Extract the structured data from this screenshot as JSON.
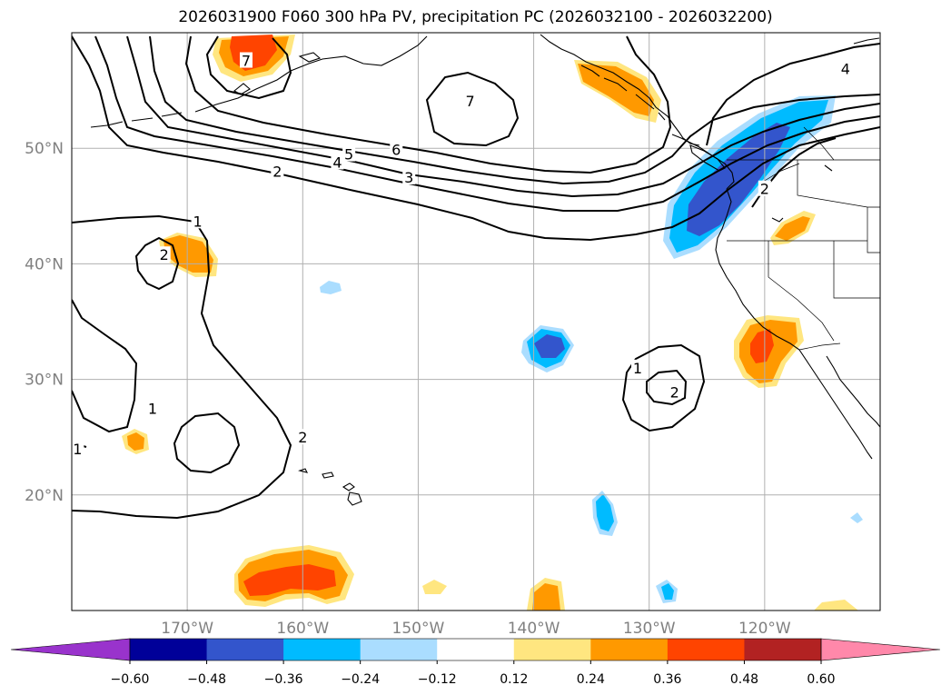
{
  "chart_data": {
    "type": "contour-map",
    "title": "2026031900 F060 300 hPa PV, precipitation PC (2026032100 - 2026032200)",
    "lat_range": [
      10,
      60
    ],
    "lon_range": [
      -180,
      -110
    ],
    "lat_ticks": [
      {
        "value": 50,
        "label": "50°N"
      },
      {
        "value": 40,
        "label": "40°N"
      },
      {
        "value": 30,
        "label": "30°N"
      },
      {
        "value": 20,
        "label": "20°N"
      }
    ],
    "lon_ticks": [
      {
        "value": -170,
        "label": "170°W"
      },
      {
        "value": -160,
        "label": "160°W"
      },
      {
        "value": -150,
        "label": "150°W"
      },
      {
        "value": -140,
        "label": "140°W"
      },
      {
        "value": -130,
        "label": "130°W"
      },
      {
        "value": -120,
        "label": "120°W"
      }
    ],
    "grid": true,
    "pv_contour_levels": [
      1,
      2,
      3,
      4,
      5,
      6,
      7
    ],
    "contour_labels": [
      {
        "text": "7",
        "lon": -164.9,
        "lat": 57.6
      },
      {
        "text": "7",
        "lon": -145.5,
        "lat": 54.1
      },
      {
        "text": "6",
        "lon": -151.9,
        "lat": 49.9
      },
      {
        "text": "5",
        "lon": -156.0,
        "lat": 49.5
      },
      {
        "text": "4",
        "lon": -157.0,
        "lat": 48.8
      },
      {
        "text": "3",
        "lon": -150.8,
        "lat": 47.5
      },
      {
        "text": "2",
        "lon": -162.2,
        "lat": 48.0
      },
      {
        "text": "1",
        "lon": -169.1,
        "lat": 43.7
      },
      {
        "text": "2",
        "lon": -172.0,
        "lat": 40.8
      },
      {
        "text": "1",
        "lon": -173.0,
        "lat": 27.5
      },
      {
        "text": "2",
        "lon": -160.0,
        "lat": 25.0
      },
      {
        "text": "1",
        "lon": -179.5,
        "lat": 24.0
      },
      {
        "text": "1",
        "lon": -131.0,
        "lat": 31.0
      },
      {
        "text": "2",
        "lon": -127.8,
        "lat": 28.9
      },
      {
        "text": "4",
        "lon": -113.0,
        "lat": 56.9
      },
      {
        "text": "2",
        "lon": -120.0,
        "lat": 46.5
      }
    ],
    "precip_levels": [
      -0.6,
      -0.48,
      -0.36,
      -0.24,
      -0.12,
      0.12,
      0.24,
      0.36,
      0.48,
      0.6
    ],
    "colorbar": {
      "colors": [
        "#9933cc",
        "#000099",
        "#3355cc",
        "#00bbff",
        "#aaddff",
        "#ffffff",
        "#ffe680",
        "#ff9900",
        "#ff4400",
        "#b22222",
        "#ff88aa"
      ],
      "tick_labels": [
        "−0.60",
        "−0.48",
        "−0.36",
        "−0.24",
        "−0.12",
        "0.12",
        "0.24",
        "0.36",
        "0.48",
        "0.60"
      ],
      "extend": "both"
    }
  }
}
